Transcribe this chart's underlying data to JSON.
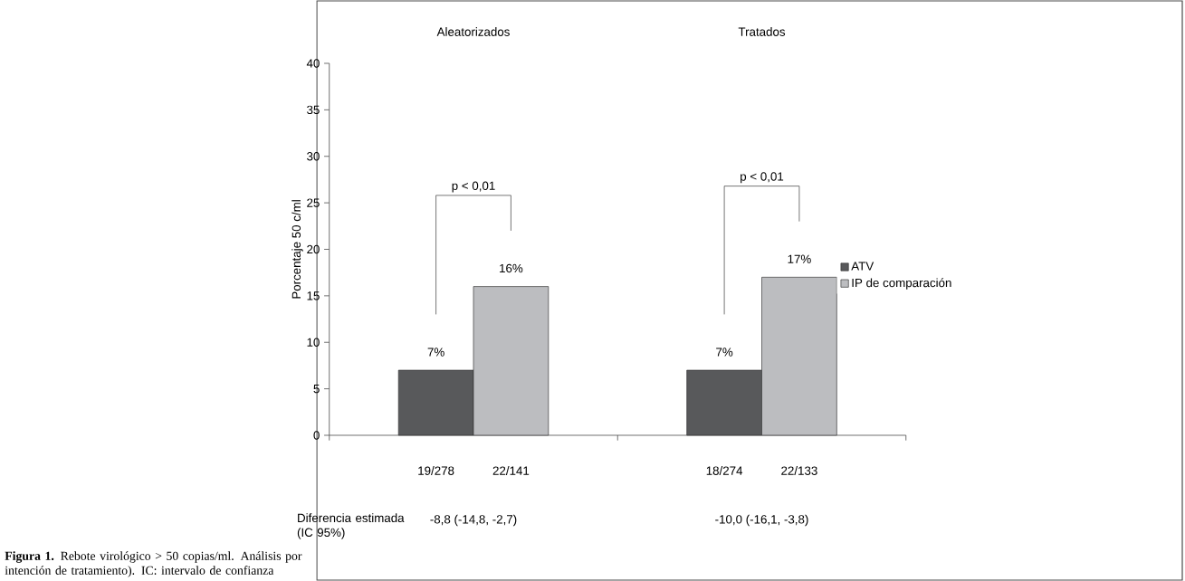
{
  "chart_data": {
    "type": "bar",
    "ylabel": "Porcentaje 50 c/ml",
    "categories": [
      "Aleatorizados",
      "Tratados"
    ],
    "series": [
      {
        "name": "ATV",
        "color": "#58595b",
        "values": [
          7,
          7
        ],
        "value_labels": [
          "7%",
          "7%"
        ]
      },
      {
        "name": "IP de comparación",
        "color": "#bcbdc0",
        "values": [
          16,
          17
        ],
        "value_labels": [
          "16%",
          "17%"
        ]
      }
    ],
    "ylim": [
      0,
      40
    ],
    "yticks": [
      0,
      5,
      10,
      15,
      20,
      25,
      30,
      35,
      40
    ],
    "legend": "right",
    "grid": false,
    "annotations": [
      "19/278",
      "22/141",
      "p < 0,01",
      "-8,8 (-14,8, -2,7)",
      "18/274",
      "22/133",
      "p < 0,01",
      "-10,0 (-16,1, -3,8)",
      "Diferencia estimada (IC 95%)",
      "**Figura 1.** Rebote virológico > 50 copias/ml. Análisis por intención de tratamiento). IC: intervalo de confianza"
    ]
  }
}
